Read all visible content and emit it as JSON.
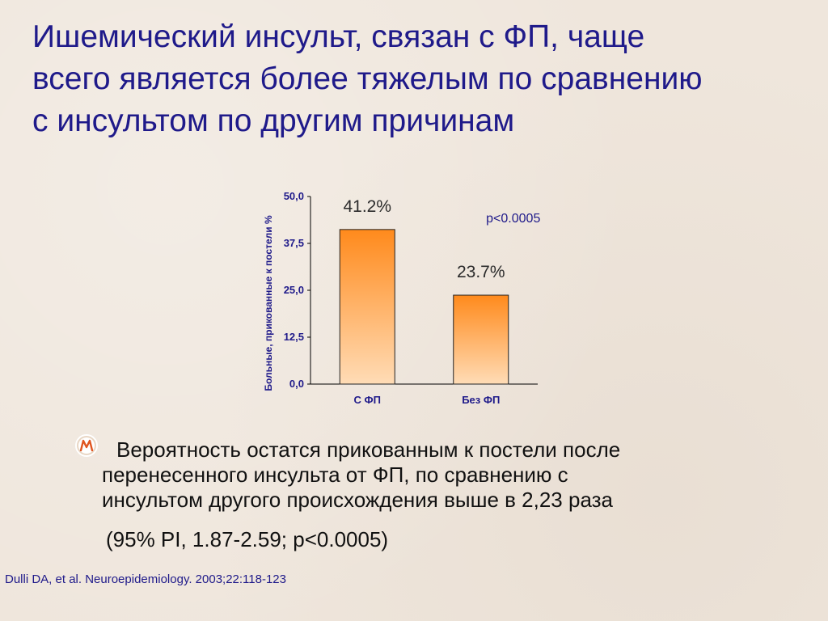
{
  "slide": {
    "title_lines": [
      "Ишемический инсульт, связан с ФП, чаще",
      "всего является более тяжелым по сравнению",
      "с инсультом по другим причинам"
    ],
    "bullet_lines": [
      "Вероятность остатся прикованным к постели после",
      "перенесенного инсульта от ФП, по сравнению с",
      "инсультом другого происхождения  выше в 2,23 раза"
    ],
    "bullet_icon": "m-logo-bullet-icon",
    "ci_text": "(95% PI, 1.87-2.59; p<0.0005)",
    "citation": "Dulli DA, et al. Neuroepidemiology. 2003;22:118-123"
  },
  "colors": {
    "title": "#1f1a8a",
    "bar_top": "#ff8a1c",
    "bar_bottom": "#ffdcb6",
    "background": "#efe6dc"
  },
  "chart_data": {
    "type": "bar",
    "title": "",
    "categories": [
      "С ФП",
      "Без ФП"
    ],
    "values": [
      41.2,
      23.7
    ],
    "data_labels": [
      "41.2%",
      "23.7%"
    ],
    "ylabel": "Больные, прикованные к постели %",
    "xlabel": "",
    "ylim": [
      0,
      50
    ],
    "yticks": [
      "0,0",
      "12,5",
      "25,0",
      "37,5",
      "50,0"
    ],
    "yticks_values": [
      0,
      12.5,
      25,
      37.5,
      50
    ],
    "annotation": "p<0.0005",
    "grid": false,
    "legend": "none"
  }
}
